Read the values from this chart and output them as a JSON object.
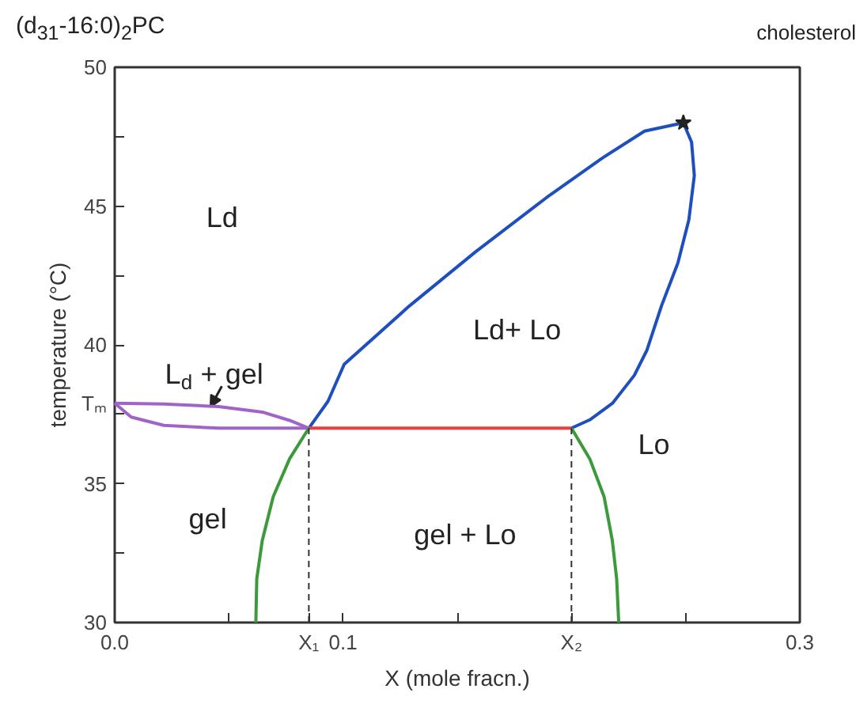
{
  "chart_data": {
    "type": "line",
    "title": "(d$_{31}$-16:0)$_{2}$PC",
    "xlabel": "X (mole fracn.)",
    "ylabel": "temperature (°C)",
    "xlim": [
      0,
      0.3
    ],
    "ylim": [
      30,
      50
    ],
    "xticks": [
      {
        "value": 0,
        "label": "0.0"
      },
      {
        "value": 0.05,
        "label": null
      },
      {
        "value": 0.085,
        "label": "X₁"
      },
      {
        "value": 0.1,
        "label": "0.1"
      },
      {
        "value": 0.15,
        "label": null
      },
      {
        "value": 0.2,
        "label": "X₂"
      },
      {
        "value": 0.25,
        "label": null
      },
      {
        "value": 0.3,
        "label": "0.3"
      }
    ],
    "yticks": [
      30,
      {
        "value": 32.5,
        "label": null
      },
      35,
      {
        "value": 37.5,
        "label": null
      },
      {
        "value": 37.9,
        "label": "Tₘ"
      },
      40,
      {
        "value": 42.5,
        "label": null
      },
      45,
      {
        "value": 47.5,
        "label": null
      },
      50
    ],
    "grid": false,
    "series": [
      {
        "color": "#1f4fbf",
        "x": [
          0.085,
          0.0934,
          0.1005,
          0.129,
          0.158,
          0.189,
          0.213,
          0.232,
          0.249,
          0.2526,
          0.2538,
          0.2514,
          0.2466,
          0.2394,
          0.233,
          0.2275,
          0.218,
          0.208,
          0.2
        ],
        "values": [
          37.0,
          37.97,
          39.3,
          41.4,
          43.35,
          45.3,
          46.7,
          47.7,
          48.0,
          47.3,
          46.1,
          44.5,
          42.95,
          41.4,
          39.8,
          38.9,
          37.9,
          37.3,
          37.0
        ]
      },
      {
        "color": "#a064c8",
        "x": [
          0,
          0.0072,
          0.0215,
          0.0455,
          0.069,
          0.085
        ],
        "values": [
          37.9,
          37.4,
          37.1,
          37.0,
          37.0,
          37.0
        ]
      },
      {
        "color": "#a064c8",
        "x": [
          0,
          0.0215,
          0.0455,
          0.0646,
          0.0766,
          0.085
        ],
        "values": [
          37.9,
          37.87,
          37.78,
          37.58,
          37.28,
          37.0
        ]
      },
      {
        "color": "#f03c3c",
        "x": [
          0.085,
          0.2
        ],
        "values": [
          37.0,
          37.0
        ]
      },
      {
        "color": "#3c9a3c",
        "x": [
          0.085,
          0.0766,
          0.0694,
          0.0646,
          0.0622,
          0.0618
        ],
        "values": [
          37.0,
          35.9,
          34.53,
          32.95,
          31.57,
          30.0
        ]
      },
      {
        "color": "#3c9a3c",
        "x": [
          0.2,
          0.208,
          0.2143,
          0.2179,
          0.2198,
          0.2207
        ],
        "values": [
          37.0,
          35.9,
          34.53,
          32.95,
          31.57,
          30.0
        ]
      },
      {
        "color": "#333333",
        "line_style": "dashed",
        "x": [
          0.085,
          0.085
        ],
        "values": [
          30,
          37.0
        ]
      },
      {
        "color": "#333333",
        "line_style": "dashed",
        "x": [
          0.2,
          0.2
        ],
        "values": [
          30,
          37.0
        ]
      },
      {
        "type": "scatter",
        "color": "#222222",
        "marker": "star",
        "x": [
          0.249
        ],
        "values": [
          48.0
        ]
      }
    ],
    "annotations": [
      "Ld",
      "L$_{d}$ + gel",
      "Ld+ Lo",
      "Lo",
      "gel",
      "gel + Lo",
      "cholesterol"
    ]
  }
}
